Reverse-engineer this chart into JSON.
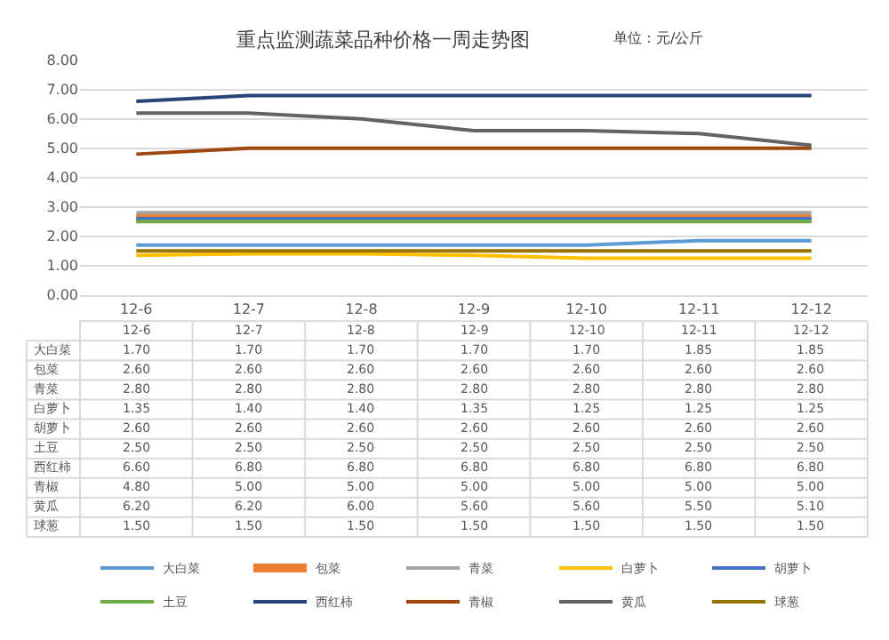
{
  "chart_data": {
    "type": "line",
    "title": "重点监测蔬菜品种价格一周走势图",
    "subtitle": "单位：元/公斤",
    "categories": [
      "12-6",
      "12-7",
      "12-8",
      "12-9",
      "12-10",
      "12-11",
      "12-12"
    ],
    "series": [
      {
        "name": "大白菜",
        "color": "#5b9bd5",
        "values": [
          1.7,
          1.7,
          1.7,
          1.7,
          1.7,
          1.85,
          1.85
        ],
        "value_labels": [
          "1.70",
          "1.70",
          "1.70",
          "1.70",
          "1.70",
          "1.85",
          "1.85"
        ]
      },
      {
        "name": "包菜",
        "color": "#ed7d31",
        "values": [
          2.6,
          2.6,
          2.6,
          2.6,
          2.6,
          2.6,
          2.6
        ],
        "value_labels": [
          "2.60",
          "2.60",
          "2.60",
          "2.60",
          "2.60",
          "2.60",
          "2.60"
        ]
      },
      {
        "name": "青菜",
        "color": "#a5a5a5",
        "values": [
          2.8,
          2.8,
          2.8,
          2.8,
          2.8,
          2.8,
          2.8
        ],
        "value_labels": [
          "2.80",
          "2.80",
          "2.80",
          "2.80",
          "2.80",
          "2.80",
          "2.80"
        ]
      },
      {
        "name": "白萝卜",
        "color": "#ffc000",
        "values": [
          1.35,
          1.4,
          1.4,
          1.35,
          1.25,
          1.25,
          1.25
        ],
        "value_labels": [
          "1.35",
          "1.40",
          "1.40",
          "1.35",
          "1.25",
          "1.25",
          "1.25"
        ]
      },
      {
        "name": "胡萝卜",
        "color": "#4472c4",
        "values": [
          2.6,
          2.6,
          2.6,
          2.6,
          2.6,
          2.6,
          2.6
        ],
        "value_labels": [
          "2.60",
          "2.60",
          "2.60",
          "2.60",
          "2.60",
          "2.60",
          "2.60"
        ]
      },
      {
        "name": "土豆",
        "color": "#70ad47",
        "values": [
          2.5,
          2.5,
          2.5,
          2.5,
          2.5,
          2.5,
          2.5
        ],
        "value_labels": [
          "2.50",
          "2.50",
          "2.50",
          "2.50",
          "2.50",
          "2.50",
          "2.50"
        ]
      },
      {
        "name": "西红柿",
        "color": "#264478",
        "values": [
          6.6,
          6.8,
          6.8,
          6.8,
          6.8,
          6.8,
          6.8
        ],
        "value_labels": [
          "6.60",
          "6.80",
          "6.80",
          "6.80",
          "6.80",
          "6.80",
          "6.80"
        ]
      },
      {
        "name": "青椒",
        "color": "#9e480e",
        "values": [
          4.8,
          5.0,
          5.0,
          5.0,
          5.0,
          5.0,
          5.0
        ],
        "value_labels": [
          "4.80",
          "5.00",
          "5.00",
          "5.00",
          "5.00",
          "5.00",
          "5.00"
        ]
      },
      {
        "name": "黄瓜",
        "color": "#636363",
        "values": [
          6.2,
          6.2,
          6.0,
          5.6,
          5.6,
          5.5,
          5.1
        ],
        "value_labels": [
          "6.20",
          "6.20",
          "6.00",
          "5.60",
          "5.60",
          "5.50",
          "5.10"
        ]
      },
      {
        "name": "球葱",
        "color": "#997300",
        "values": [
          1.5,
          1.5,
          1.5,
          1.5,
          1.5,
          1.5,
          1.5
        ],
        "value_labels": [
          "1.50",
          "1.50",
          "1.50",
          "1.50",
          "1.50",
          "1.50",
          "1.50"
        ]
      }
    ],
    "ylim": [
      0,
      8
    ],
    "yticks": [
      {
        "value": 0,
        "label": "0.00"
      },
      {
        "value": 1,
        "label": "1.00"
      },
      {
        "value": 2,
        "label": "2.00"
      },
      {
        "value": 3,
        "label": "3.00"
      },
      {
        "value": 4,
        "label": "4.00"
      },
      {
        "value": 5,
        "label": "5.00"
      },
      {
        "value": 6,
        "label": "6.00"
      },
      {
        "value": 7,
        "label": "7.00"
      },
      {
        "value": 8,
        "label": "8.00"
      }
    ],
    "grid": "y",
    "legend": "bottom",
    "marker": "none",
    "line_style": "solid"
  }
}
